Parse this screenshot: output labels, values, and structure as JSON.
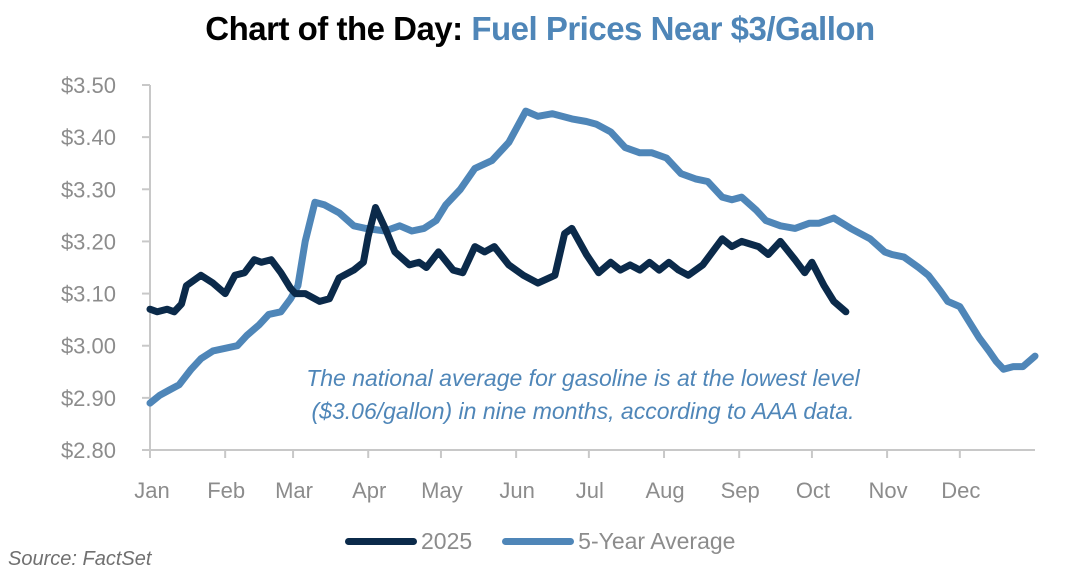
{
  "title": {
    "prefix": "Chart of the Day:",
    "highlight": "Fuel Prices Near $3/Gallon"
  },
  "source": "Source: FactSet",
  "colors": {
    "series_2025": "#0b2a4a",
    "series_5yr": "#4f86b8",
    "axis": "#c8c8c8",
    "tick_text": "#8c8c8c",
    "highlight": "#4f86b8"
  },
  "chart_data": {
    "type": "line",
    "title": "Chart of the Day: Fuel Prices Near $3/Gallon",
    "xlabel": "",
    "ylabel": "",
    "x_unit": "day of year",
    "xlim": [
      0,
      365
    ],
    "ylim": [
      2.8,
      3.5
    ],
    "grid": false,
    "legend_position": "bottom-center",
    "y_ticks": [
      2.8,
      2.9,
      3.0,
      3.1,
      3.2,
      3.3,
      3.4,
      3.5
    ],
    "y_tick_labels": [
      "$2.80",
      "$2.90",
      "$3.00",
      "$3.10",
      "$3.20",
      "$3.30",
      "$3.40",
      "$3.50"
    ],
    "x_ticks": [
      0,
      31,
      59,
      90,
      120,
      151,
      181,
      212,
      243,
      273,
      304,
      334
    ],
    "x_tick_labels": [
      "Jan",
      "Feb",
      "Mar",
      "Apr",
      "May",
      "Jun",
      "Jul",
      "Aug",
      "Sep",
      "Oct",
      "Nov",
      "Dec"
    ],
    "annotation": {
      "line1": "The national average for gasoline is at the lowest level",
      "line2": "($3.06/gallon) in nine months, according to AAA data."
    },
    "series": [
      {
        "name": "2025",
        "points": [
          [
            0,
            3.07
          ],
          [
            3,
            3.065
          ],
          [
            7,
            3.07
          ],
          [
            10,
            3.065
          ],
          [
            13,
            3.08
          ],
          [
            15,
            3.115
          ],
          [
            21,
            3.135
          ],
          [
            26,
            3.12
          ],
          [
            31,
            3.1
          ],
          [
            35,
            3.135
          ],
          [
            39,
            3.14
          ],
          [
            43,
            3.165
          ],
          [
            46,
            3.16
          ],
          [
            50,
            3.165
          ],
          [
            54,
            3.14
          ],
          [
            58,
            3.11
          ],
          [
            60,
            3.1
          ],
          [
            64,
            3.1
          ],
          [
            70,
            3.085
          ],
          [
            74,
            3.09
          ],
          [
            78,
            3.13
          ],
          [
            84,
            3.145
          ],
          [
            88,
            3.16
          ],
          [
            90,
            3.21
          ],
          [
            93,
            3.265
          ],
          [
            97,
            3.225
          ],
          [
            101,
            3.18
          ],
          [
            107,
            3.155
          ],
          [
            111,
            3.16
          ],
          [
            114,
            3.15
          ],
          [
            119,
            3.18
          ],
          [
            125,
            3.145
          ],
          [
            129,
            3.14
          ],
          [
            134,
            3.19
          ],
          [
            138,
            3.18
          ],
          [
            142,
            3.19
          ],
          [
            148,
            3.155
          ],
          [
            154,
            3.135
          ],
          [
            160,
            3.12
          ],
          [
            167,
            3.135
          ],
          [
            171,
            3.215
          ],
          [
            174,
            3.225
          ],
          [
            180,
            3.175
          ],
          [
            185,
            3.14
          ],
          [
            190,
            3.16
          ],
          [
            194,
            3.145
          ],
          [
            198,
            3.155
          ],
          [
            202,
            3.145
          ],
          [
            206,
            3.16
          ],
          [
            210,
            3.145
          ],
          [
            214,
            3.16
          ],
          [
            218,
            3.145
          ],
          [
            222,
            3.135
          ],
          [
            228,
            3.155
          ],
          [
            236,
            3.205
          ],
          [
            240,
            3.19
          ],
          [
            244,
            3.2
          ],
          [
            251,
            3.19
          ],
          [
            255,
            3.175
          ],
          [
            260,
            3.2
          ],
          [
            266,
            3.165
          ],
          [
            270,
            3.14
          ],
          [
            273,
            3.16
          ],
          [
            278,
            3.115
          ],
          [
            282,
            3.085
          ],
          [
            287,
            3.065
          ]
        ]
      },
      {
        "name": "5-Year Average",
        "points": [
          [
            0,
            2.89
          ],
          [
            4,
            2.905
          ],
          [
            8,
            2.915
          ],
          [
            12,
            2.925
          ],
          [
            17,
            2.955
          ],
          [
            21,
            2.975
          ],
          [
            26,
            2.99
          ],
          [
            31,
            2.995
          ],
          [
            36,
            3.0
          ],
          [
            40,
            3.02
          ],
          [
            45,
            3.04
          ],
          [
            49,
            3.06
          ],
          [
            54,
            3.065
          ],
          [
            58,
            3.09
          ],
          [
            61,
            3.115
          ],
          [
            64,
            3.2
          ],
          [
            68,
            3.275
          ],
          [
            72,
            3.27
          ],
          [
            78,
            3.255
          ],
          [
            84,
            3.23
          ],
          [
            89,
            3.225
          ],
          [
            97,
            3.22
          ],
          [
            103,
            3.23
          ],
          [
            108,
            3.22
          ],
          [
            113,
            3.225
          ],
          [
            118,
            3.24
          ],
          [
            122,
            3.27
          ],
          [
            128,
            3.3
          ],
          [
            134,
            3.34
          ],
          [
            141,
            3.355
          ],
          [
            148,
            3.39
          ],
          [
            155,
            3.45
          ],
          [
            160,
            3.44
          ],
          [
            166,
            3.445
          ],
          [
            174,
            3.435
          ],
          [
            180,
            3.43
          ],
          [
            184,
            3.425
          ],
          [
            190,
            3.41
          ],
          [
            196,
            3.38
          ],
          [
            202,
            3.37
          ],
          [
            207,
            3.37
          ],
          [
            213,
            3.36
          ],
          [
            219,
            3.33
          ],
          [
            225,
            3.32
          ],
          [
            230,
            3.315
          ],
          [
            236,
            3.285
          ],
          [
            240,
            3.28
          ],
          [
            244,
            3.285
          ],
          [
            250,
            3.26
          ],
          [
            254,
            3.24
          ],
          [
            260,
            3.23
          ],
          [
            266,
            3.225
          ],
          [
            272,
            3.235
          ],
          [
            276,
            3.235
          ],
          [
            282,
            3.245
          ],
          [
            289,
            3.225
          ],
          [
            297,
            3.205
          ],
          [
            303,
            3.18
          ],
          [
            306,
            3.175
          ],
          [
            311,
            3.17
          ],
          [
            317,
            3.15
          ],
          [
            321,
            3.135
          ],
          [
            326,
            3.105
          ],
          [
            329,
            3.085
          ],
          [
            334,
            3.075
          ],
          [
            338,
            3.045
          ],
          [
            342,
            3.015
          ],
          [
            346,
            2.99
          ],
          [
            349,
            2.97
          ],
          [
            352,
            2.955
          ],
          [
            356,
            2.96
          ],
          [
            360,
            2.96
          ],
          [
            365,
            2.98
          ]
        ]
      }
    ]
  },
  "legend": [
    {
      "label": "2025"
    },
    {
      "label": "5-Year Average"
    }
  ]
}
